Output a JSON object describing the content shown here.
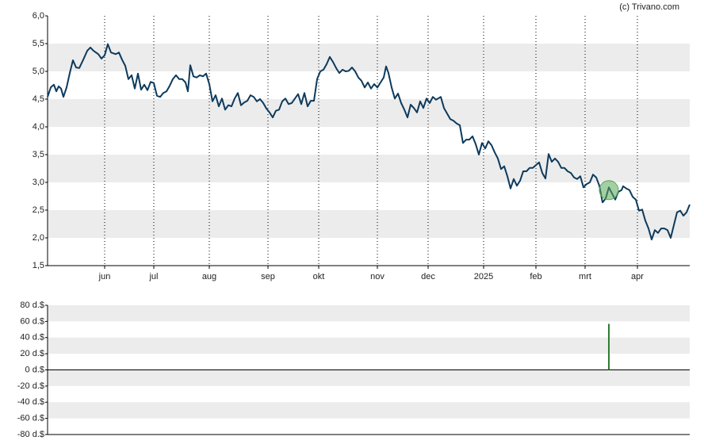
{
  "credit": "(c) Trivano.com",
  "chart_data": [
    {
      "type": "line",
      "xlim": [
        0,
        405
      ],
      "xticks": [
        {
          "value": 36,
          "label": "jun"
        },
        {
          "value": 67,
          "label": "jul"
        },
        {
          "value": 102,
          "label": "aug"
        },
        {
          "value": 139,
          "label": "sep"
        },
        {
          "value": 171,
          "label": "okt"
        },
        {
          "value": 208,
          "label": "nov"
        },
        {
          "value": 240,
          "label": "dec"
        },
        {
          "value": 275,
          "label": "2025"
        },
        {
          "value": 308,
          "label": "feb"
        },
        {
          "value": 339,
          "label": "mrt"
        },
        {
          "value": 372,
          "label": "apr"
        }
      ],
      "ylim": [
        1.5,
        6.0
      ],
      "yticks": [
        {
          "value": 1.5,
          "label": "1,5"
        },
        {
          "value": 2.0,
          "label": "2,0"
        },
        {
          "value": 2.5,
          "label": "2,5"
        },
        {
          "value": 3.0,
          "label": "3,0"
        },
        {
          "value": 3.5,
          "label": "3,5"
        },
        {
          "value": 4.0,
          "label": "4,0"
        },
        {
          "value": 4.5,
          "label": "4,5"
        },
        {
          "value": 5.0,
          "label": "5,0"
        },
        {
          "value": 5.5,
          "label": "5,5"
        },
        {
          "value": 6.0,
          "label": "6,0"
        }
      ],
      "bands": true,
      "grid": true,
      "x": [
        0,
        2,
        4,
        5.5,
        7,
        8.5,
        10,
        12,
        14,
        16,
        18,
        20,
        22.5,
        25,
        27,
        29,
        32,
        34,
        36,
        38,
        40,
        43,
        45,
        47,
        49,
        51,
        53,
        55,
        57,
        59,
        61,
        63,
        65,
        67,
        69,
        71,
        73,
        75,
        77,
        79,
        81,
        83,
        85,
        87,
        88.5,
        90,
        92,
        94,
        96,
        98,
        100,
        102,
        104,
        106,
        108,
        110,
        112,
        114,
        116,
        118,
        120,
        122,
        124,
        126,
        128,
        130,
        132,
        134,
        136,
        138,
        140,
        142,
        144,
        146,
        148,
        150,
        152,
        154,
        156,
        158,
        160,
        162,
        164,
        166,
        168,
        170,
        172,
        174,
        176,
        178,
        180,
        182,
        184,
        186,
        188,
        190,
        192,
        194,
        196,
        198,
        200,
        202,
        204,
        206,
        208,
        210,
        212,
        213.5,
        215,
        217,
        219,
        221,
        223,
        225,
        227,
        229,
        231,
        233,
        235,
        237,
        239,
        241,
        243,
        245,
        248,
        250,
        252,
        254,
        256,
        258,
        260,
        262,
        264,
        266,
        268,
        270,
        272,
        274,
        276,
        278,
        280,
        282,
        284,
        286,
        288,
        290,
        292,
        294,
        296,
        298,
        300,
        302,
        304,
        306,
        308,
        310,
        312,
        314,
        316,
        318,
        320,
        322,
        324,
        326,
        328,
        330,
        332,
        334,
        336,
        338,
        340,
        342,
        344,
        346,
        348,
        350,
        352,
        354,
        356,
        358,
        360,
        362,
        363,
        365,
        367,
        369,
        371,
        373,
        375,
        377,
        379,
        381,
        383,
        385,
        387,
        389,
        391,
        393,
        395,
        397,
        399,
        401,
        403,
        405
      ],
      "series": [
        {
          "color": "#0d3a5c",
          "values": [
            4.54,
            4.71,
            4.76,
            4.64,
            4.73,
            4.69,
            4.54,
            4.71,
            4.97,
            5.2,
            5.07,
            5.06,
            5.21,
            5.37,
            5.43,
            5.37,
            5.31,
            5.23,
            5.29,
            5.49,
            5.34,
            5.31,
            5.34,
            5.21,
            5.1,
            4.86,
            4.93,
            4.69,
            4.96,
            4.67,
            4.76,
            4.66,
            4.81,
            4.79,
            4.56,
            4.54,
            4.61,
            4.64,
            4.74,
            4.86,
            4.93,
            4.86,
            4.86,
            4.8,
            4.64,
            5.11,
            4.91,
            4.89,
            4.93,
            4.91,
            4.96,
            4.77,
            4.46,
            4.57,
            4.37,
            4.51,
            4.31,
            4.39,
            4.37,
            4.51,
            4.61,
            4.39,
            4.44,
            4.47,
            4.57,
            4.54,
            4.46,
            4.5,
            4.43,
            4.33,
            4.26,
            4.17,
            4.29,
            4.31,
            4.46,
            4.51,
            4.41,
            4.43,
            4.51,
            4.59,
            4.41,
            4.61,
            4.37,
            4.47,
            4.47,
            4.86,
            5.0,
            5.03,
            5.13,
            5.26,
            5.17,
            5.06,
            4.97,
            5.03,
            5.0,
            5.01,
            5.07,
            5.0,
            4.89,
            4.83,
            4.71,
            4.8,
            4.69,
            4.77,
            4.71,
            4.8,
            4.89,
            5.09,
            4.97,
            4.71,
            4.51,
            4.6,
            4.43,
            4.31,
            4.17,
            4.4,
            4.34,
            4.26,
            4.46,
            4.34,
            4.51,
            4.43,
            4.54,
            4.49,
            4.54,
            4.34,
            4.24,
            4.14,
            4.11,
            4.06,
            4.03,
            3.71,
            3.77,
            3.77,
            3.83,
            3.69,
            3.5,
            3.71,
            3.61,
            3.74,
            3.67,
            3.54,
            3.43,
            3.24,
            3.29,
            3.11,
            2.89,
            3.06,
            2.94,
            3.03,
            3.2,
            3.2,
            3.26,
            3.26,
            3.31,
            3.36,
            3.17,
            3.07,
            3.51,
            3.37,
            3.43,
            3.37,
            3.26,
            3.26,
            3.2,
            3.17,
            3.09,
            3.06,
            3.11,
            2.91,
            2.97,
            3.0,
            3.14,
            3.09,
            2.94,
            2.64,
            2.71,
            2.91,
            2.8,
            2.69,
            2.83,
            2.86,
            2.93,
            2.89,
            2.86,
            2.74,
            2.69,
            2.49,
            2.51,
            2.31,
            2.17,
            1.97,
            2.14,
            2.09,
            2.17,
            2.17,
            2.14,
            2.0,
            2.23,
            2.46,
            2.49,
            2.4,
            2.46,
            2.6
          ]
        }
      ],
      "markers": [
        {
          "x": 354,
          "value": 2.86,
          "color": "#5aa85a"
        }
      ]
    },
    {
      "type": "bar",
      "xlim": [
        0,
        405
      ],
      "ylim": [
        -80,
        80
      ],
      "yticks": [
        {
          "value": -80,
          "label": "-80 d.$"
        },
        {
          "value": -60,
          "label": "-60 d.$"
        },
        {
          "value": -40,
          "label": "-40 d.$"
        },
        {
          "value": -20,
          "label": "-20 d.$"
        },
        {
          "value": 0,
          "label": "0 d.$"
        },
        {
          "value": 20,
          "label": "20 d.$"
        },
        {
          "value": 40,
          "label": "40 d.$"
        },
        {
          "value": 60,
          "label": "60 d.$"
        },
        {
          "value": 80,
          "label": "80 d.$"
        }
      ],
      "bands": true,
      "x": [
        354
      ],
      "values": [
        57
      ],
      "color": "#2e7d32"
    }
  ]
}
